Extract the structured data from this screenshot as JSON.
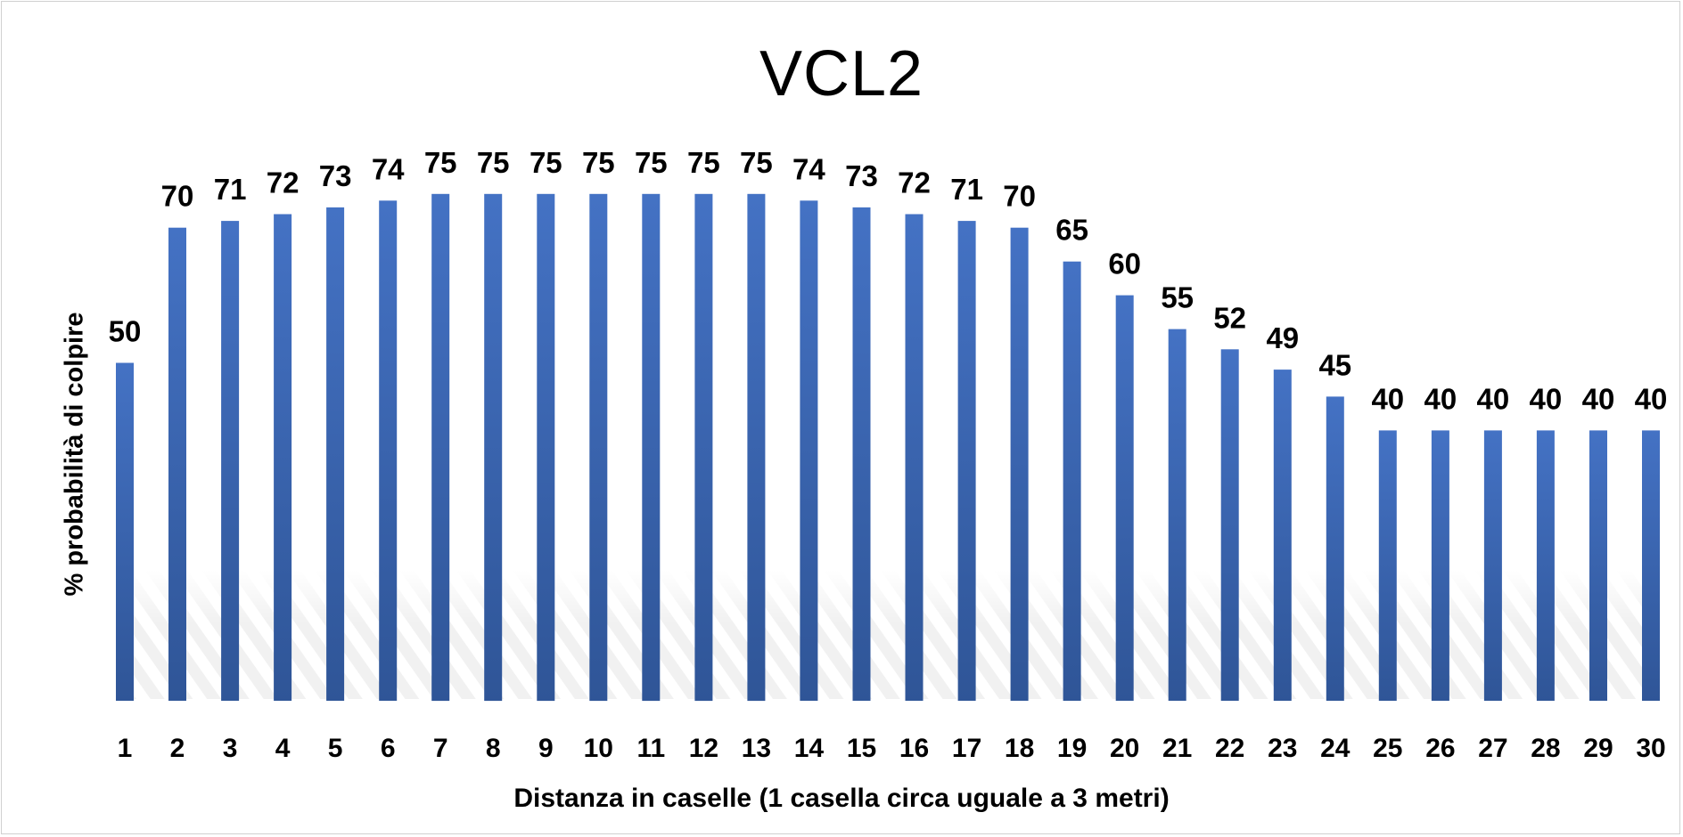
{
  "chart_data": {
    "type": "bar",
    "title": "VCL2",
    "xlabel": "Distanza in caselle (1 casella circa uguale a 3 metri)",
    "ylabel": "% probabilità di colpire",
    "categories": [
      "1",
      "2",
      "3",
      "4",
      "5",
      "6",
      "7",
      "8",
      "9",
      "10",
      "11",
      "12",
      "13",
      "14",
      "15",
      "16",
      "17",
      "18",
      "19",
      "20",
      "21",
      "22",
      "23",
      "24",
      "25",
      "26",
      "27",
      "28",
      "29",
      "30"
    ],
    "values": [
      50,
      70,
      71,
      72,
      73,
      74,
      75,
      75,
      75,
      75,
      75,
      75,
      75,
      74,
      73,
      72,
      71,
      70,
      65,
      60,
      55,
      52,
      49,
      45,
      40,
      40,
      40,
      40,
      40,
      40
    ],
    "ylim": [
      0,
      75
    ],
    "grid": false,
    "data_labels": true,
    "bar_color": "#4472C4",
    "bar_color_dark": "#2F5597"
  }
}
